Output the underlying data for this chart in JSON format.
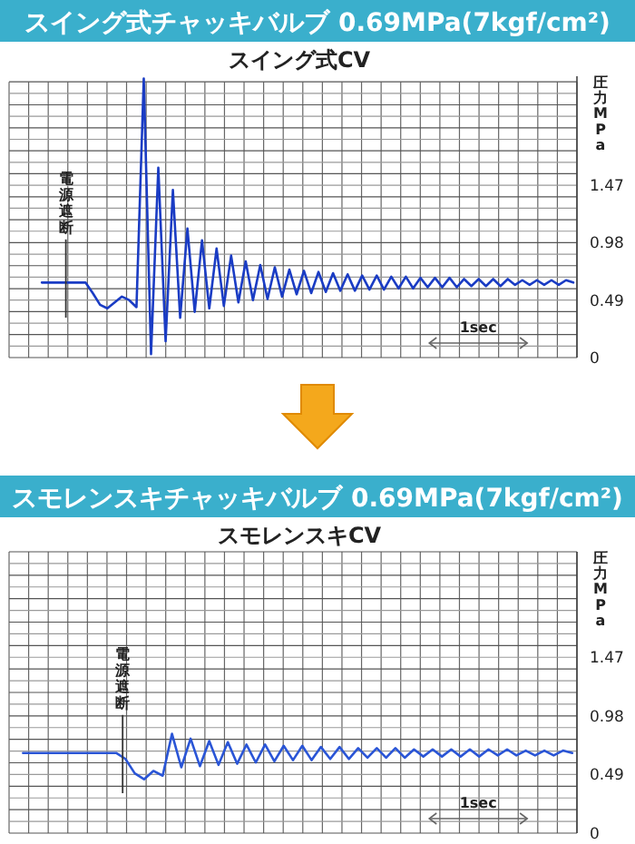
{
  "chart_data": [
    {
      "type": "line",
      "title": "スイング式チャッキバルブ 0.69MPa(7kgf/cm²)",
      "subtitle": "スイング式CV",
      "ylabel": "圧力MPa",
      "annotations": [
        "電源遮断",
        "1sec"
      ],
      "grid": true,
      "tick_labels": "y",
      "ylim": [
        0,
        2.4
      ],
      "categories": [
        null,
        null,
        null,
        null,
        null,
        null,
        null,
        null,
        null,
        null,
        null,
        null,
        null,
        null,
        null,
        null,
        null,
        null,
        null,
        null,
        null,
        null,
        null,
        null,
        null,
        null,
        null,
        null,
        null,
        null,
        null,
        null,
        null,
        null,
        null,
        null,
        null,
        null,
        null,
        null,
        null,
        null,
        null,
        null,
        null,
        null,
        null,
        null,
        null,
        null,
        null,
        null,
        null,
        null,
        null,
        null,
        null,
        null,
        null,
        null,
        null,
        null,
        null,
        null,
        null,
        null,
        null,
        null,
        null,
        null,
        null,
        null,
        null,
        null,
        null,
        null,
        null,
        null
      ],
      "yticks": [
        0,
        {
          "value": 0.098,
          "label": null
        },
        {
          "value": 0.196,
          "label": null
        },
        {
          "value": 0.294,
          "label": null
        },
        {
          "value": 0.392,
          "label": null
        },
        0.49,
        {
          "value": 0.588,
          "label": null
        },
        {
          "value": 0.686,
          "label": null
        },
        {
          "value": 0.784,
          "label": null
        },
        {
          "value": 0.882,
          "label": null
        },
        0.98,
        {
          "value": 1.078,
          "label": null
        },
        {
          "value": 1.176,
          "label": null
        },
        {
          "value": 1.274,
          "label": null
        },
        {
          "value": 1.372,
          "label": null
        },
        1.47,
        {
          "value": 1.568,
          "label": null
        },
        {
          "value": 1.666,
          "label": null
        },
        {
          "value": 1.764,
          "label": null
        },
        {
          "value": 1.862,
          "label": null
        },
        {
          "value": 1.96,
          "label": null
        },
        {
          "value": 2.058,
          "label": null
        },
        {
          "value": 2.156,
          "label": null
        },
        {
          "value": 2.254,
          "label": null
        },
        {
          "value": 2.352,
          "label": null
        }
      ],
      "series": [
        {
          "color": "#1a3cc4",
          "values": [
            null,
            null,
            null,
            null,
            0.64,
            0.64,
            0.64,
            0.64,
            0.64,
            0.64,
            0.64,
            0.55,
            0.45,
            0.42,
            0.47,
            0.52,
            0.49,
            0.43,
            2.38,
            0.03,
            1.62,
            0.14,
            1.43,
            0.34,
            1.1,
            0.39,
            1.0,
            0.42,
            0.93,
            0.44,
            0.87,
            0.47,
            0.82,
            0.49,
            0.79,
            0.5,
            0.77,
            0.52,
            0.75,
            0.54,
            0.74,
            0.55,
            0.73,
            0.56,
            0.72,
            0.57,
            0.71,
            0.57,
            0.7,
            0.58,
            0.7,
            0.58,
            0.69,
            0.59,
            0.69,
            0.59,
            0.68,
            0.6,
            0.68,
            0.6,
            0.68,
            0.6,
            0.67,
            0.61,
            0.67,
            0.61,
            0.67,
            0.61,
            0.67,
            0.62,
            0.66,
            0.62,
            0.66,
            0.62,
            0.66,
            0.62,
            0.66,
            0.64
          ]
        }
      ]
    },
    {
      "type": "line",
      "title": "スモレンスキチャッキバルブ 0.69MPa(7kgf/cm²)",
      "subtitle": "スモレンスキCV",
      "ylabel": "圧力MPa",
      "annotations": [
        "電源遮断",
        "1sec"
      ],
      "grid": true,
      "tick_labels": "y",
      "ylim": [
        0,
        2.352
      ],
      "categories": [
        null,
        null,
        null,
        null,
        null,
        null,
        null,
        null,
        null,
        null,
        null,
        null,
        null,
        null,
        null,
        null,
        null,
        null,
        null,
        null,
        null,
        null,
        null,
        null,
        null,
        null,
        null,
        null,
        null,
        null,
        null,
        null,
        null,
        null,
        null,
        null,
        null,
        null,
        null,
        null,
        null,
        null,
        null,
        null,
        null,
        null,
        null,
        null,
        null,
        null,
        null,
        null,
        null,
        null,
        null,
        null,
        null,
        null,
        null,
        null,
        null
      ],
      "yticks": [
        0,
        {
          "value": 0.098,
          "label": null
        },
        {
          "value": 0.196,
          "label": null
        },
        {
          "value": 0.294,
          "label": null
        },
        {
          "value": 0.392,
          "label": null
        },
        0.49,
        {
          "value": 0.588,
          "label": null
        },
        {
          "value": 0.686,
          "label": null
        },
        {
          "value": 0.784,
          "label": null
        },
        {
          "value": 0.882,
          "label": null
        },
        0.98,
        {
          "value": 1.078,
          "label": null
        },
        {
          "value": 1.176,
          "label": null
        },
        {
          "value": 1.274,
          "label": null
        },
        {
          "value": 1.372,
          "label": null
        },
        1.47,
        {
          "value": 1.568,
          "label": null
        },
        {
          "value": 1.666,
          "label": null
        },
        {
          "value": 1.764,
          "label": null
        },
        {
          "value": 1.862,
          "label": null
        },
        {
          "value": 1.96,
          "label": null
        },
        {
          "value": 2.058,
          "label": null
        },
        {
          "value": 2.156,
          "label": null
        },
        {
          "value": 2.254,
          "label": null
        },
        {
          "value": 2.352,
          "label": null
        }
      ],
      "series": [
        {
          "color": "#2a55d6",
          "values": [
            null,
            0.67,
            0.67,
            0.67,
            0.67,
            0.67,
            0.67,
            0.67,
            0.67,
            0.67,
            0.67,
            0.67,
            0.62,
            0.5,
            0.45,
            0.52,
            0.48,
            0.83,
            0.55,
            0.79,
            0.56,
            0.77,
            0.57,
            0.76,
            0.58,
            0.74,
            0.59,
            0.74,
            0.6,
            0.73,
            0.61,
            0.73,
            0.61,
            0.72,
            0.62,
            0.72,
            0.62,
            0.71,
            0.63,
            0.71,
            0.63,
            0.71,
            0.63,
            0.7,
            0.64,
            0.7,
            0.64,
            0.7,
            0.64,
            0.7,
            0.64,
            0.7,
            0.65,
            0.7,
            0.65,
            0.69,
            0.65,
            0.69,
            0.65,
            0.69,
            0.67
          ]
        }
      ]
    }
  ]
}
